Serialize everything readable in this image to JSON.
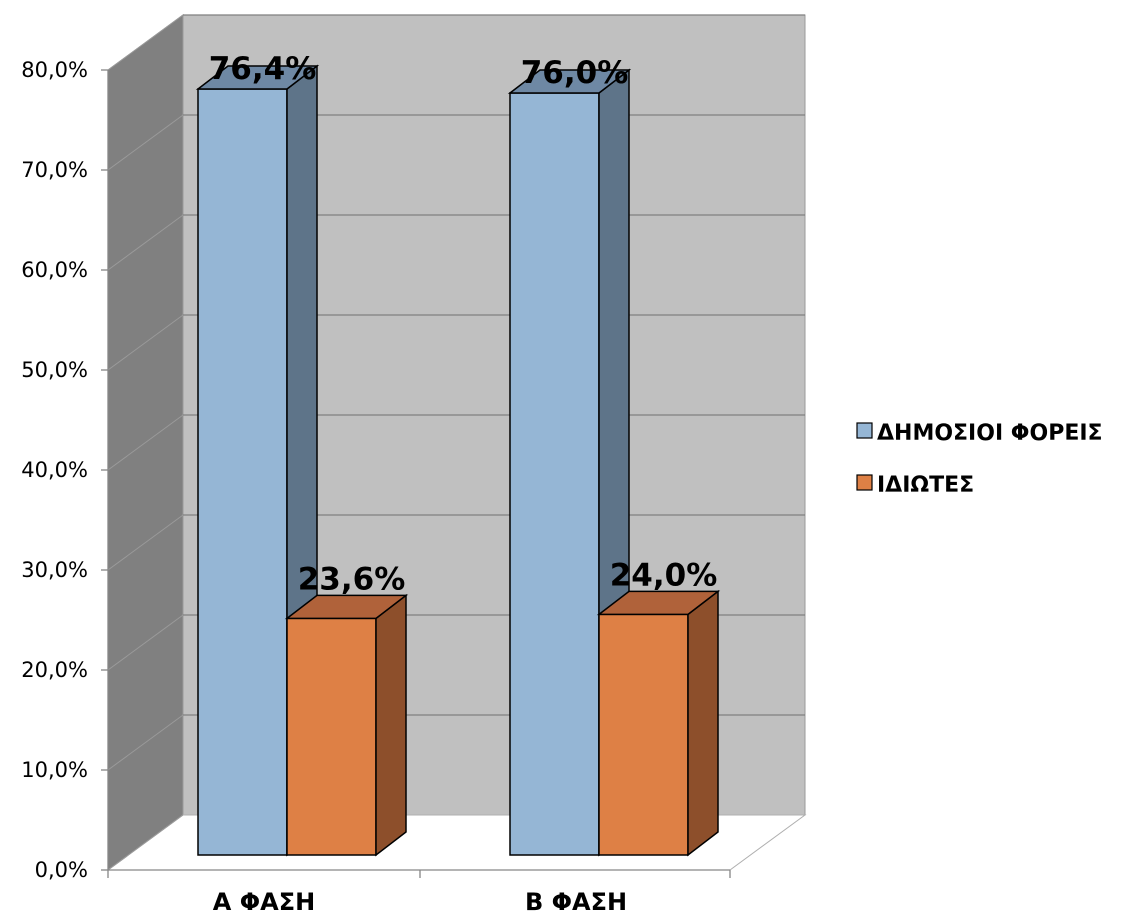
{
  "chart_data": {
    "type": "bar",
    "categories": [
      "Α ΦΑΣΗ",
      "Β ΦΑΣΗ"
    ],
    "series": [
      {
        "name": "ΔΗΜΟΣΙΟΙ ΦΟΡΕΙΣ",
        "values": [
          76.4,
          76.0
        ],
        "value_labels": [
          "76,4%",
          "76,0%"
        ],
        "color": "#95B6D5",
        "side_color": "#5E7489",
        "top_color": "#6E88A4"
      },
      {
        "name": "ΙΔΙΩΤΕΣ",
        "values": [
          23.6,
          24.0
        ],
        "value_labels": [
          "23,6%",
          "24,0%"
        ],
        "color": "#DE8045",
        "side_color": "#8D4F2B",
        "top_color": "#B0623A"
      }
    ],
    "ylim": [
      0,
      80
    ],
    "y_ticks": [
      0,
      10,
      20,
      30,
      40,
      50,
      60,
      70,
      80
    ],
    "y_tick_labels": [
      "0,0%",
      "10,0%",
      "20,0%",
      "30,0%",
      "40,0%",
      "50,0%",
      "60,0%",
      "70,0%",
      "80,0%"
    ],
    "grid": true,
    "legend_position": "right",
    "style": "3d-clustered-column",
    "title": "",
    "xlabel": "",
    "ylabel": ""
  }
}
